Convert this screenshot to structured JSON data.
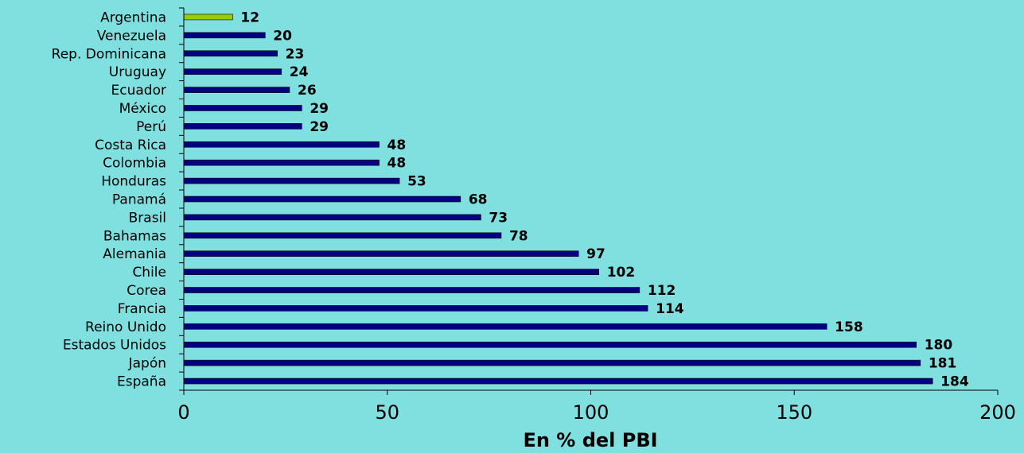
{
  "chart_data": {
    "type": "bar",
    "orientation": "horizontal",
    "categories": [
      "Argentina",
      "Venezuela",
      "Rep. Dominicana",
      "Uruguay",
      "Ecuador",
      "México",
      "Perú",
      "Costa Rica",
      "Colombia",
      "Honduras",
      "Panamá",
      "Brasil",
      "Bahamas",
      "Alemania",
      "Chile",
      "Corea",
      "Francia",
      "Reino Unido",
      "Estados Unidos",
      "Japón",
      "España"
    ],
    "values": [
      12,
      20,
      23,
      24,
      26,
      29,
      29,
      48,
      48,
      53,
      68,
      73,
      78,
      97,
      102,
      112,
      114,
      158,
      180,
      181,
      184
    ],
    "value_labels": [
      "12",
      "20",
      "23",
      "24",
      "26",
      "29",
      "29",
      "48",
      "48",
      "53",
      "68",
      "73",
      "78",
      "97",
      "102",
      "112",
      "114",
      "158",
      "180",
      "181",
      "184"
    ],
    "highlight_category": "Argentina",
    "xlabel": "En % del PBI",
    "ylabel": "",
    "xlim": [
      0,
      200
    ],
    "xticks": [
      0,
      50,
      100,
      150,
      200
    ],
    "xtick_labels": [
      "0",
      "50",
      "100",
      "150",
      "200"
    ],
    "grid": false,
    "legend": "none",
    "colors": {
      "background": "#80E0E0",
      "bar": "#000080",
      "highlight_bar": "#99CC00",
      "axis": "#000000",
      "text": "#000000"
    }
  }
}
